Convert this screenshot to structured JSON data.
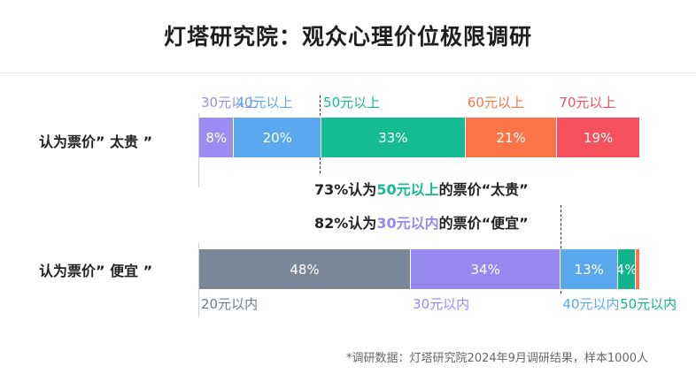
{
  "title": "灯塔研究院：观众心理价位极限调研",
  "colors": {
    "purple": "#9b8cf2",
    "blue": "#5aa8ee",
    "teal": "#14bb93",
    "orange": "#fb7448",
    "red": "#f4515c",
    "slate": "#7a8899",
    "lavender": "#9688f0",
    "tealdark": "#10b38b"
  },
  "chart_data": [
    {
      "type": "bar",
      "orientation": "horizontal-stacked",
      "category": "认为票价” 太贵 ”",
      "series": [
        {
          "name": "30元以上",
          "value": 8,
          "label": "8%",
          "color": "#9b8cf2"
        },
        {
          "name": "40元以上",
          "value": 20,
          "label": "20%",
          "color": "#5aa8ee"
        },
        {
          "name": "50元以上",
          "value": 33,
          "label": "33%",
          "color": "#14bb93"
        },
        {
          "name": "60元以上",
          "value": 21,
          "label": "21%",
          "color": "#fb7448"
        },
        {
          "name": "70元以上",
          "value": 19,
          "label": "19%",
          "color": "#f4515c"
        }
      ]
    },
    {
      "type": "bar",
      "orientation": "horizontal-stacked",
      "category": "认为票价” 便宜 ”",
      "series": [
        {
          "name": "20元以内",
          "value": 48,
          "label": "48%",
          "color": "#7a8899"
        },
        {
          "name": "30元以内",
          "value": 34,
          "label": "34%",
          "color": "#9688f0"
        },
        {
          "name": "40元以内",
          "value": 13,
          "label": "13%",
          "color": "#5aa8ee"
        },
        {
          "name": "50元以内",
          "value": 4,
          "label": "4%",
          "color": "#10b38b"
        },
        {
          "name": "",
          "value": 1,
          "label": "",
          "color": "#fb7448"
        }
      ]
    }
  ],
  "annotations": {
    "expensive": {
      "prefix": "73%认为",
      "highlight": "50元以上",
      "suffix": "的票价“太贵”",
      "highlight_color": "#14bb93"
    },
    "cheap": {
      "prefix": "82%认为",
      "highlight": "30元以内",
      "suffix": "的票价“便宜”",
      "highlight_color": "#9688f0"
    }
  },
  "footnote": "*调研数据：灯塔研究院2024年9月调研结果，样本1000人"
}
